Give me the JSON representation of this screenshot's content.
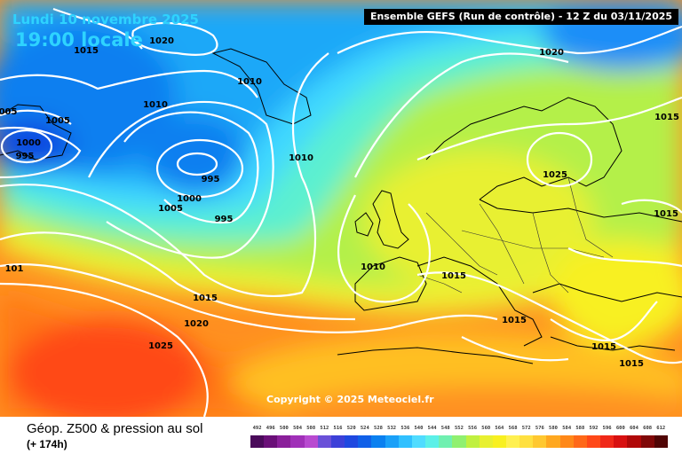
{
  "header": {
    "date": "Lundi 10 novembre 2025",
    "time": "19:00 locale",
    "run": "Ensemble GEFS  (Run de contrôle)  -  12 Z du 03/11/2025"
  },
  "copyright": "Copyright © 2025 Meteociel.fr",
  "footer": {
    "product": "Géop. Z500 & pression au sol",
    "lead": "(+ 174h)"
  },
  "legend": {
    "values": [
      "492",
      "496",
      "500",
      "504",
      "508",
      "512",
      "516",
      "520",
      "524",
      "528",
      "532",
      "536",
      "540",
      "544",
      "548",
      "552",
      "556",
      "560",
      "564",
      "568",
      "572",
      "576",
      "580",
      "584",
      "588",
      "592",
      "596",
      "600",
      "604",
      "608",
      "612"
    ],
    "colors": [
      "#4a0a5a",
      "#6a0f78",
      "#8a1f9a",
      "#a030b8",
      "#b84ad0",
      "#6a50d8",
      "#3c40d8",
      "#1e48e0",
      "#1060e8",
      "#0a80f0",
      "#1aa0f8",
      "#30c0ff",
      "#50dcff",
      "#5cf0e8",
      "#70f0b0",
      "#90f070",
      "#c0f040",
      "#e8f030",
      "#f8f020",
      "#fff050",
      "#ffe040",
      "#ffc830",
      "#ffa820",
      "#ff8818",
      "#ff6818",
      "#ff4818",
      "#f02818",
      "#d81010",
      "#b00808",
      "#800808",
      "#500505"
    ]
  },
  "pressure_labels": [
    {
      "name": "pressure-label-1020-nw",
      "text": "1020"
    },
    {
      "name": "pressure-label-1015-nw",
      "text": "1015"
    },
    {
      "name": "pressure-label-1010-greenland",
      "text": "1010"
    },
    {
      "name": "pressure-label-1005-west-edge",
      "text": "005"
    },
    {
      "name": "pressure-label-1005-west",
      "text": "1005"
    },
    {
      "name": "pressure-label-1000-west",
      "text": "1000"
    },
    {
      "name": "pressure-label-995-west",
      "text": "995"
    },
    {
      "name": "pressure-label-1010-atlantic-north",
      "text": "1010"
    },
    {
      "name": "pressure-label-995-low-center",
      "text": "995"
    },
    {
      "name": "pressure-label-1000-low",
      "text": "1000"
    },
    {
      "name": "pressure-label-1005-low",
      "text": "1005"
    },
    {
      "name": "pressure-label-995-low-south",
      "text": "995"
    },
    {
      "name": "pressure-label-1010-atlantic-mid",
      "text": "1010"
    },
    {
      "name": "pressure-label-1020-ne",
      "text": "1020"
    },
    {
      "name": "pressure-label-1015-east-north",
      "text": "1015"
    },
    {
      "name": "pressure-label-1025-scandinavia",
      "text": "1025"
    },
    {
      "name": "pressure-label-1015-east-mid",
      "text": "1015"
    },
    {
      "name": "pressure-label-1010-biscay",
      "text": "1010"
    },
    {
      "name": "pressure-label-1015-alps",
      "text": "1015"
    },
    {
      "name": "pressure-label-1015-west-cut",
      "text": "101"
    },
    {
      "name": "pressure-label-1015-azores",
      "text": "1015"
    },
    {
      "name": "pressure-label-1020-azores",
      "text": "1020"
    },
    {
      "name": "pressure-label-1025-azores",
      "text": "1025"
    },
    {
      "name": "pressure-label-1015-balkans",
      "text": "1015"
    },
    {
      "name": "pressure-label-1015-aegean",
      "text": "1015"
    },
    {
      "name": "pressure-label-1015-turkey",
      "text": "1015"
    }
  ]
}
